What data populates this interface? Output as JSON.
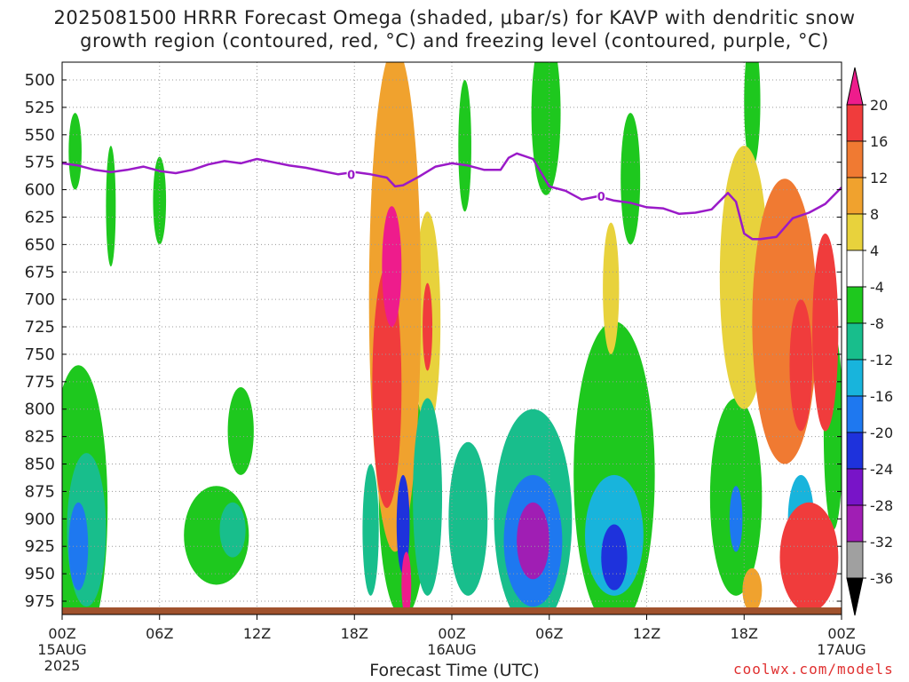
{
  "title_line1": "2025081500 HRRR Forecast Omega (shaded, μbar/s) for KAVP with dendritic snow",
  "title_line2": "growth region (contoured, red, °C) and freezing level (contoured, purple, °C)",
  "credit": "coolwx.com/models",
  "chart_data": {
    "type": "heatmap",
    "xlabel": "Forecast Time (UTC)",
    "ylabel": "",
    "ylim": [
      985,
      490
    ],
    "xlim": [
      0,
      48
    ],
    "y_ticks": [
      500,
      525,
      550,
      575,
      600,
      625,
      650,
      675,
      700,
      725,
      750,
      775,
      800,
      825,
      850,
      875,
      900,
      925,
      950,
      975
    ],
    "x_ticks": [
      {
        "h": 0,
        "label": "00Z",
        "sub1": "15AUG",
        "sub2": "2025"
      },
      {
        "h": 6,
        "label": "06Z",
        "sub1": "",
        "sub2": ""
      },
      {
        "h": 12,
        "label": "12Z",
        "sub1": "",
        "sub2": ""
      },
      {
        "h": 18,
        "label": "18Z",
        "sub1": "",
        "sub2": ""
      },
      {
        "h": 24,
        "label": "00Z",
        "sub1": "16AUG",
        "sub2": ""
      },
      {
        "h": 30,
        "label": "06Z",
        "sub1": "",
        "sub2": ""
      },
      {
        "h": 36,
        "label": "12Z",
        "sub1": "",
        "sub2": ""
      },
      {
        "h": 42,
        "label": "18Z",
        "sub1": "",
        "sub2": ""
      },
      {
        "h": 48,
        "label": "00Z",
        "sub1": "17AUG",
        "sub2": ""
      }
    ],
    "grid": true,
    "colorbar": {
      "labels": [
        "20",
        "16",
        "12",
        "8",
        "4",
        "-4",
        "-8",
        "-12",
        "-16",
        "-20",
        "-24",
        "-28",
        "-32",
        "-36"
      ],
      "colors": [
        "#ee1c8c",
        "#f03c3c",
        "#f07a32",
        "#f0a22e",
        "#e8d23c",
        "#ffffff",
        "#1ec81e",
        "#18be8c",
        "#18b4dc",
        "#1e78f0",
        "#1e32dc",
        "#7814c8",
        "#a01eb4",
        "#a0a0a0",
        "#000000"
      ]
    },
    "freezing_level": {
      "label": "0",
      "color": "#9a1ac8",
      "hours": [
        0,
        1,
        2,
        3,
        4,
        5,
        6,
        7,
        8,
        9,
        10,
        11,
        12,
        13,
        14,
        15,
        16,
        17,
        18,
        19,
        20,
        20.5,
        21,
        22,
        23,
        24,
        25,
        26,
        27,
        27.5,
        28,
        29,
        30,
        31,
        32,
        33,
        34,
        35,
        36,
        37,
        38,
        39,
        40,
        41,
        41.5,
        42,
        42.5,
        43,
        44,
        45,
        46,
        47,
        48
      ],
      "pressure": [
        576,
        578,
        582,
        584,
        582,
        579,
        583,
        585,
        582,
        577,
        574,
        576,
        572,
        575,
        578,
        580,
        583,
        586,
        584,
        586,
        589,
        597,
        596,
        588,
        579,
        576,
        578,
        582,
        582,
        571,
        567,
        572,
        597,
        601,
        609,
        606,
        610,
        612,
        616,
        617,
        622,
        621,
        618,
        603,
        611,
        640,
        645,
        645,
        643,
        626,
        621,
        613,
        598
      ]
    },
    "omega_features": [
      {
        "hour": 1.0,
        "center": 925,
        "half_width": 0.6,
        "half_depth": 40,
        "level": -16
      },
      {
        "hour": 1.0,
        "center": 890,
        "half_width": 1.8,
        "half_depth": 130,
        "level": -4
      },
      {
        "hour": 1.5,
        "center": 910,
        "half_width": 1.2,
        "half_depth": 70,
        "level": -8
      },
      {
        "hour": 0.8,
        "center": 565,
        "half_width": 0.4,
        "half_depth": 35,
        "level": -4
      },
      {
        "hour": 3.0,
        "center": 615,
        "half_width": 0.3,
        "half_depth": 55,
        "level": -4
      },
      {
        "hour": 6.0,
        "center": 610,
        "half_width": 0.4,
        "half_depth": 40,
        "level": -4
      },
      {
        "hour": 9.5,
        "center": 915,
        "half_width": 2.0,
        "half_depth": 45,
        "level": -4
      },
      {
        "hour": 10.5,
        "center": 910,
        "half_width": 0.8,
        "half_depth": 25,
        "level": -8
      },
      {
        "hour": 11.0,
        "center": 820,
        "half_width": 0.8,
        "half_depth": 40,
        "level": -4
      },
      {
        "hour": 19.0,
        "center": 910,
        "half_width": 0.5,
        "half_depth": 60,
        "level": -8
      },
      {
        "hour": 20.0,
        "center": 780,
        "half_width": 0.9,
        "half_depth": 110,
        "level": 16
      },
      {
        "hour": 20.3,
        "center": 670,
        "half_width": 0.6,
        "half_depth": 55,
        "level": 20
      },
      {
        "hour": 20.5,
        "center": 700,
        "half_width": 1.6,
        "half_depth": 230,
        "level": 8
      },
      {
        "hour": 21.0,
        "center": 905,
        "half_width": 0.4,
        "half_depth": 45,
        "level": -20
      },
      {
        "hour": 21.0,
        "center": 880,
        "half_width": 1.5,
        "half_depth": 110,
        "level": -4
      },
      {
        "hour": 21.2,
        "center": 960,
        "half_width": 0.3,
        "half_depth": 30,
        "level": 20
      },
      {
        "hour": 22.5,
        "center": 725,
        "half_width": 0.3,
        "half_depth": 40,
        "level": 16
      },
      {
        "hour": 22.5,
        "center": 720,
        "half_width": 0.8,
        "half_depth": 100,
        "level": 4
      },
      {
        "hour": 22.5,
        "center": 880,
        "half_width": 0.9,
        "half_depth": 90,
        "level": -8
      },
      {
        "hour": 25.0,
        "center": 900,
        "half_width": 1.2,
        "half_depth": 70,
        "level": -8
      },
      {
        "hour": 24.8,
        "center": 560,
        "half_width": 0.4,
        "half_depth": 60,
        "level": -4
      },
      {
        "hour": 29.0,
        "center": 920,
        "half_width": 1.0,
        "half_depth": 35,
        "level": -28
      },
      {
        "hour": 29.0,
        "center": 920,
        "half_width": 1.8,
        "half_depth": 60,
        "level": -16
      },
      {
        "hour": 29.0,
        "center": 900,
        "half_width": 2.4,
        "half_depth": 100,
        "level": -8
      },
      {
        "hour": 29.8,
        "center": 530,
        "half_width": 0.9,
        "half_depth": 75,
        "level": -4
      },
      {
        "hour": 34.0,
        "center": 935,
        "half_width": 0.8,
        "half_depth": 30,
        "level": -20
      },
      {
        "hour": 34.0,
        "center": 915,
        "half_width": 1.8,
        "half_depth": 55,
        "level": -12
      },
      {
        "hour": 34.0,
        "center": 860,
        "half_width": 2.5,
        "half_depth": 140,
        "level": -4
      },
      {
        "hour": 33.8,
        "center": 690,
        "half_width": 0.5,
        "half_depth": 60,
        "level": 4
      },
      {
        "hour": 35.0,
        "center": 590,
        "half_width": 0.6,
        "half_depth": 60,
        "level": -4
      },
      {
        "hour": 41.5,
        "center": 900,
        "half_width": 0.4,
        "half_depth": 30,
        "level": -16
      },
      {
        "hour": 41.5,
        "center": 880,
        "half_width": 1.6,
        "half_depth": 90,
        "level": -4
      },
      {
        "hour": 42.5,
        "center": 965,
        "half_width": 0.6,
        "half_depth": 20,
        "level": 8
      },
      {
        "hour": 42.5,
        "center": 520,
        "half_width": 0.5,
        "half_depth": 60,
        "level": -4
      },
      {
        "hour": 42.0,
        "center": 680,
        "half_width": 1.5,
        "half_depth": 120,
        "level": 4
      },
      {
        "hour": 44.5,
        "center": 720,
        "half_width": 2.0,
        "half_depth": 130,
        "level": 12
      },
      {
        "hour": 45.5,
        "center": 760,
        "half_width": 0.7,
        "half_depth": 60,
        "level": 16
      },
      {
        "hour": 45.5,
        "center": 900,
        "half_width": 0.8,
        "half_depth": 40,
        "level": -12
      },
      {
        "hour": 46.0,
        "center": 935,
        "half_width": 1.8,
        "half_depth": 50,
        "level": 16
      },
      {
        "hour": 47.0,
        "center": 730,
        "half_width": 0.8,
        "half_depth": 90,
        "level": 16
      },
      {
        "hour": 47.5,
        "center": 820,
        "half_width": 0.6,
        "half_depth": 90,
        "level": -4
      }
    ]
  }
}
